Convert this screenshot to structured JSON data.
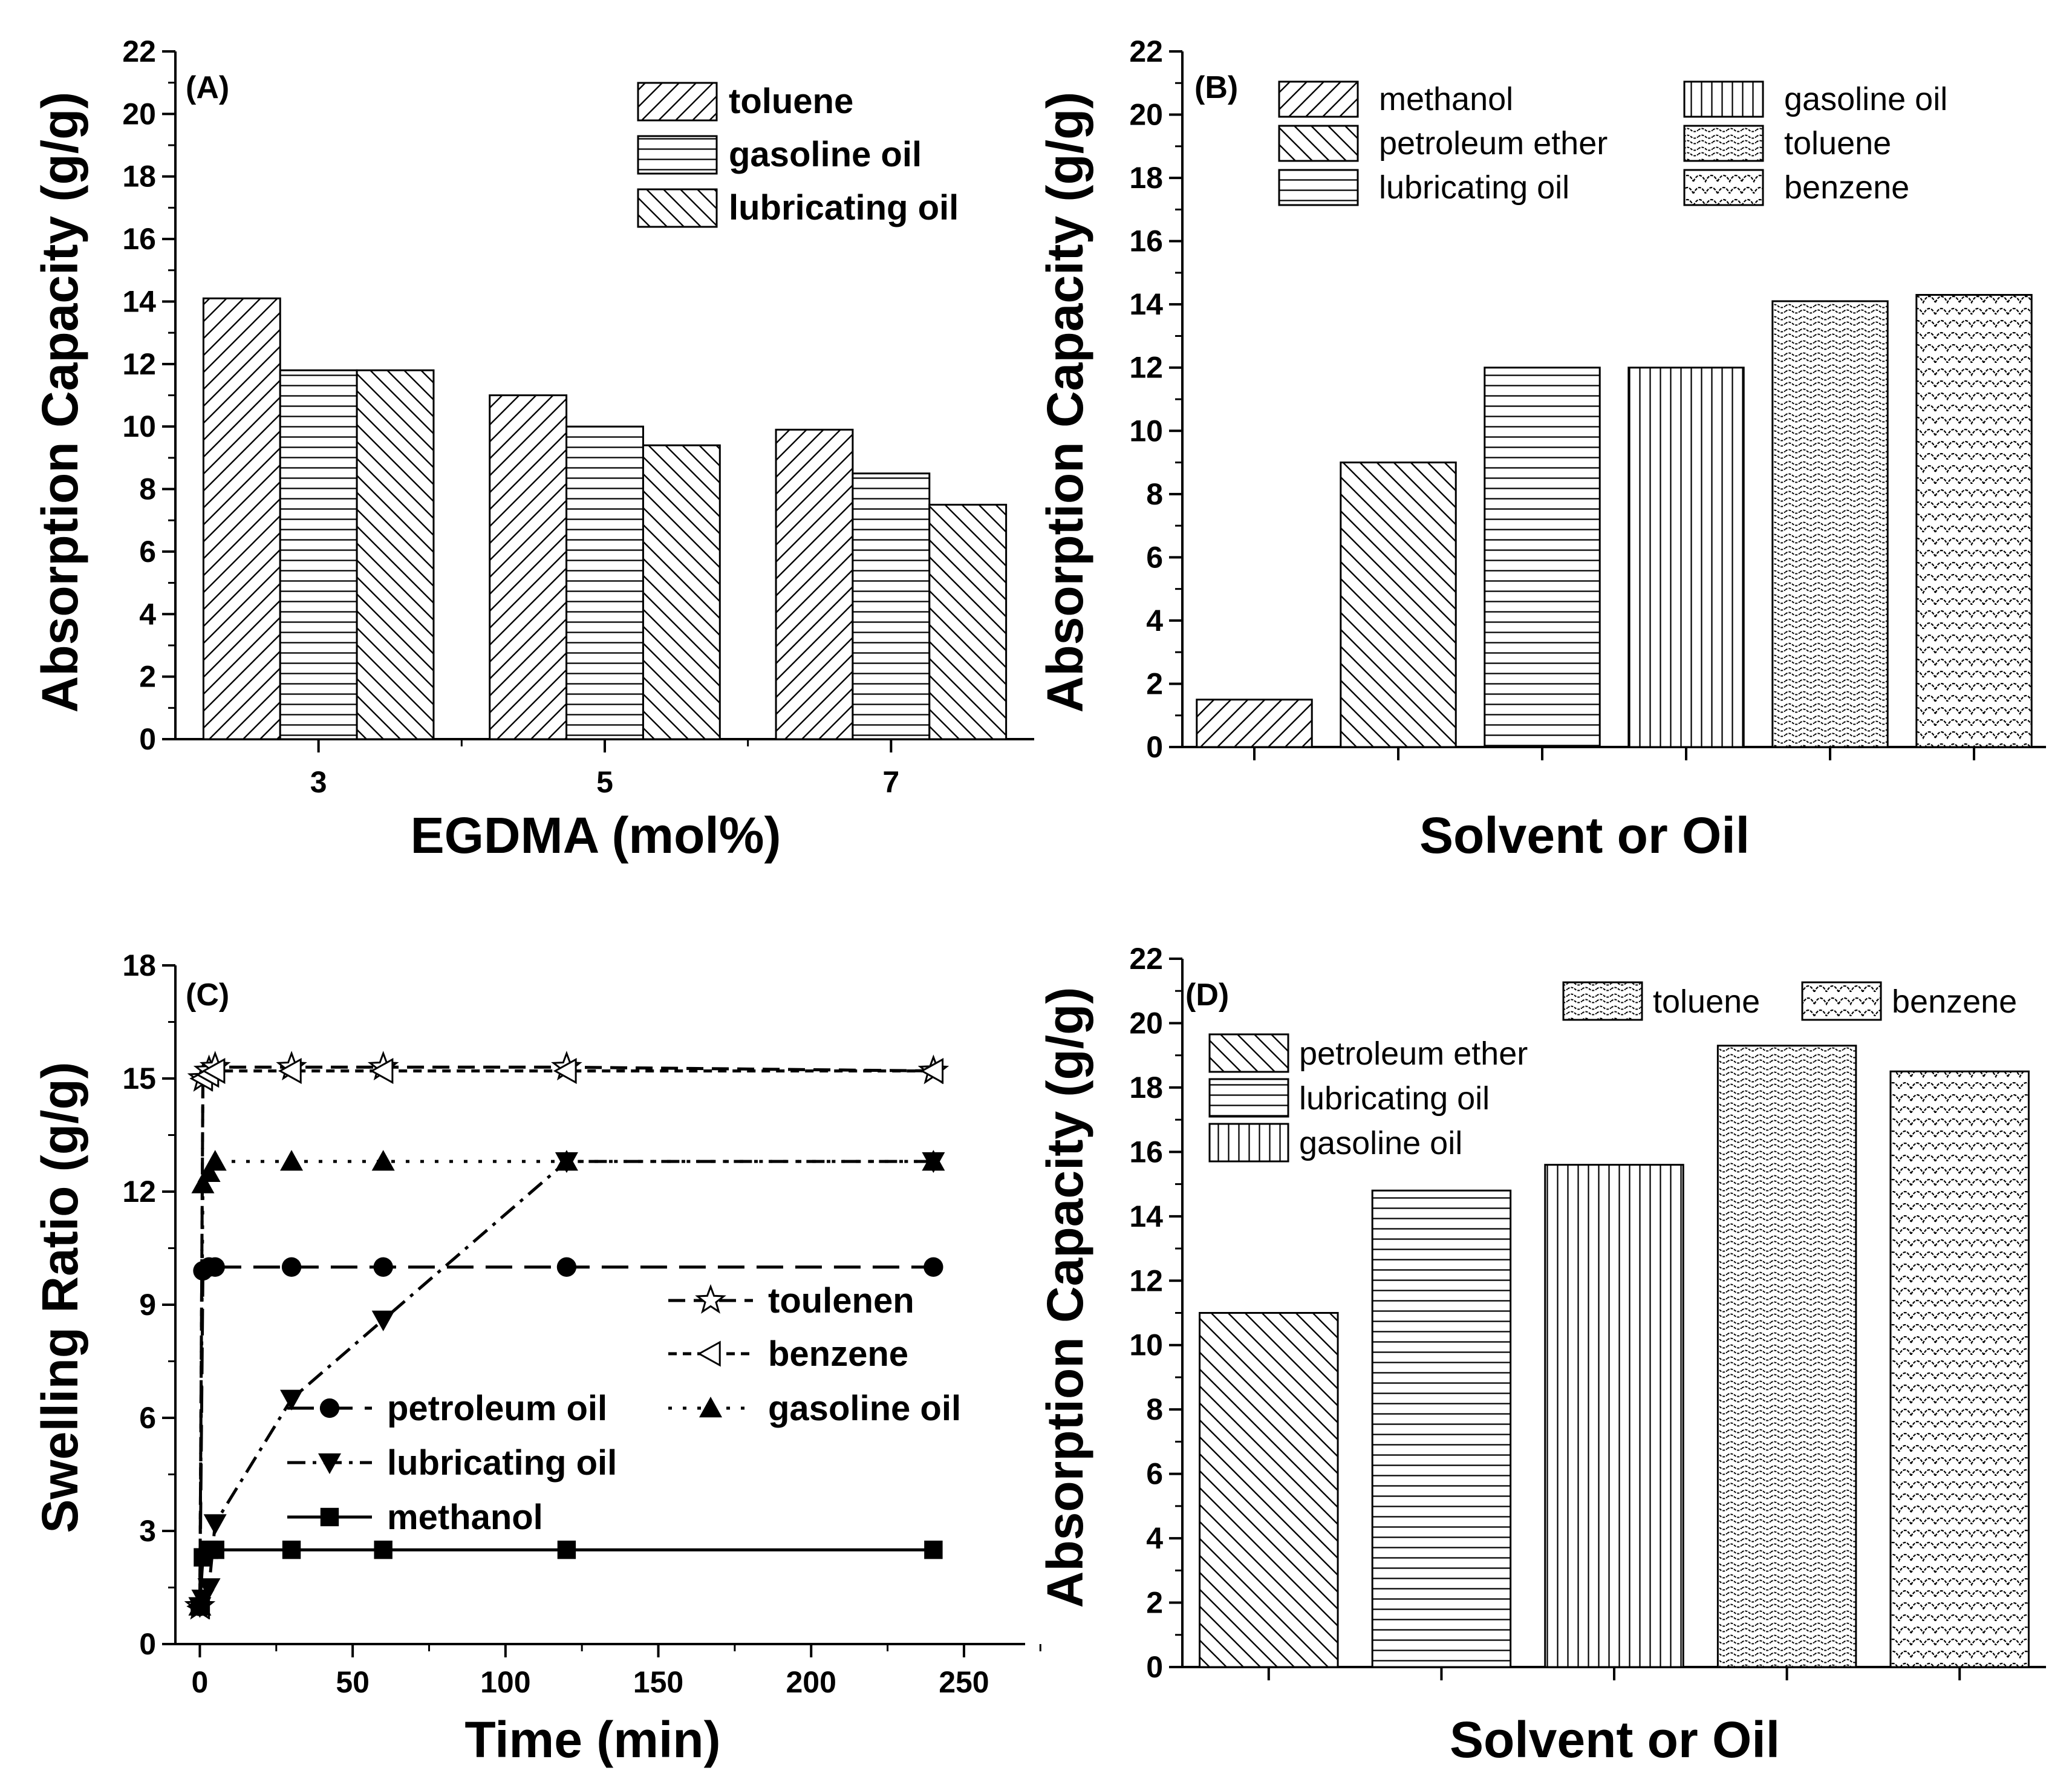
{
  "chart_data": [
    {
      "panel": "(A)",
      "type": "bar",
      "xlabel": "EGDMA (mol%)",
      "ylabel": "Absorption Capacity (g/g)",
      "ylim": [
        0,
        22
      ],
      "yticks": [
        0,
        2,
        4,
        6,
        8,
        10,
        12,
        14,
        16,
        18,
        20,
        22
      ],
      "categories": [
        "3",
        "5",
        "7"
      ],
      "series": [
        {
          "name": "toluene",
          "pattern": "diag-up",
          "values": [
            14.1,
            11.0,
            9.9
          ]
        },
        {
          "name": "gasoline oil",
          "pattern": "horizontal",
          "values": [
            11.8,
            10.0,
            8.5
          ]
        },
        {
          "name": "lubricating oil",
          "pattern": "diag-down",
          "values": [
            11.8,
            9.4,
            7.5
          ]
        }
      ],
      "legend": "top-right"
    },
    {
      "panel": "(B)",
      "type": "bar",
      "xlabel": "Solvent or Oil",
      "ylabel": "Absorption Capacity (g/g)",
      "ylim": [
        0,
        22
      ],
      "yticks": [
        0,
        2,
        4,
        6,
        8,
        10,
        12,
        14,
        16,
        18,
        20,
        22
      ],
      "categories": [
        "methanol",
        "petroleum ether",
        "lubricating oil",
        "gasoline oil",
        "toluene",
        "benzene"
      ],
      "values": [
        1.5,
        9.0,
        12.0,
        12.0,
        14.1,
        14.3
      ],
      "patterns": [
        "diag-up",
        "diag-down",
        "horizontal",
        "vertical",
        "wave",
        "scale"
      ],
      "legend": "top"
    },
    {
      "panel": "(C)",
      "type": "line",
      "xlabel": "Time (min)",
      "ylabel": "Swelling Ratio (g/g)",
      "xlim": [
        -8,
        270
      ],
      "ylim": [
        0,
        18
      ],
      "xticks": [
        0,
        50,
        100,
        150,
        200,
        250
      ],
      "yticks": [
        0,
        3,
        6,
        9,
        12,
        15,
        18
      ],
      "series": [
        {
          "name": "toulenen",
          "marker": "star",
          "dash": "dash",
          "x": [
            0,
            1,
            3,
            5,
            30,
            60,
            120,
            240
          ],
          "y": [
            1.0,
            15.0,
            15.2,
            15.3,
            15.3,
            15.3,
            15.3,
            15.2
          ]
        },
        {
          "name": "benzene",
          "marker": "tri-left",
          "dash": "short-dash",
          "x": [
            0,
            1,
            3,
            5,
            30,
            60,
            120,
            240
          ],
          "y": [
            1.0,
            15.0,
            15.1,
            15.2,
            15.2,
            15.2,
            15.2,
            15.2
          ]
        },
        {
          "name": "petroleum oil",
          "marker": "circle",
          "dash": "long-dash",
          "x": [
            0,
            1,
            3,
            5,
            30,
            60,
            120,
            240
          ],
          "y": [
            1.0,
            9.9,
            10.0,
            10.0,
            10.0,
            10.0,
            10.0,
            10.0
          ]
        },
        {
          "name": "gasoline oil",
          "marker": "tri-up",
          "dash": "dot",
          "x": [
            0,
            1,
            3,
            5,
            30,
            60,
            120,
            240
          ],
          "y": [
            1.0,
            12.2,
            12.5,
            12.8,
            12.8,
            12.8,
            12.8,
            12.8
          ]
        },
        {
          "name": "lubricating oil",
          "marker": "tri-down",
          "dash": "dash-dot",
          "x": [
            0,
            1,
            3,
            5,
            30,
            60,
            120,
            240
          ],
          "y": [
            1.0,
            1.2,
            1.5,
            3.2,
            6.5,
            8.6,
            12.8,
            12.8
          ]
        },
        {
          "name": "methanol",
          "marker": "square",
          "dash": "solid",
          "x": [
            0,
            1,
            3,
            5,
            30,
            60,
            120,
            240
          ],
          "y": [
            1.0,
            2.3,
            2.5,
            2.5,
            2.5,
            2.5,
            2.5,
            2.5
          ]
        }
      ]
    },
    {
      "panel": "(D)",
      "type": "bar",
      "xlabel": "Solvent or Oil",
      "ylabel": "Absorption Capacity (g/g)",
      "ylim": [
        0,
        22
      ],
      "yticks": [
        0,
        2,
        4,
        6,
        8,
        10,
        12,
        14,
        16,
        18,
        20,
        22
      ],
      "categories": [
        "petroleum ether",
        "lubricating oil",
        "gasoline oil",
        "toluene",
        "benzene"
      ],
      "values": [
        11.0,
        14.8,
        15.6,
        19.3,
        18.5
      ],
      "patterns": [
        "diag-down",
        "horizontal",
        "vertical",
        "wave",
        "scale"
      ],
      "legend": "top"
    }
  ]
}
